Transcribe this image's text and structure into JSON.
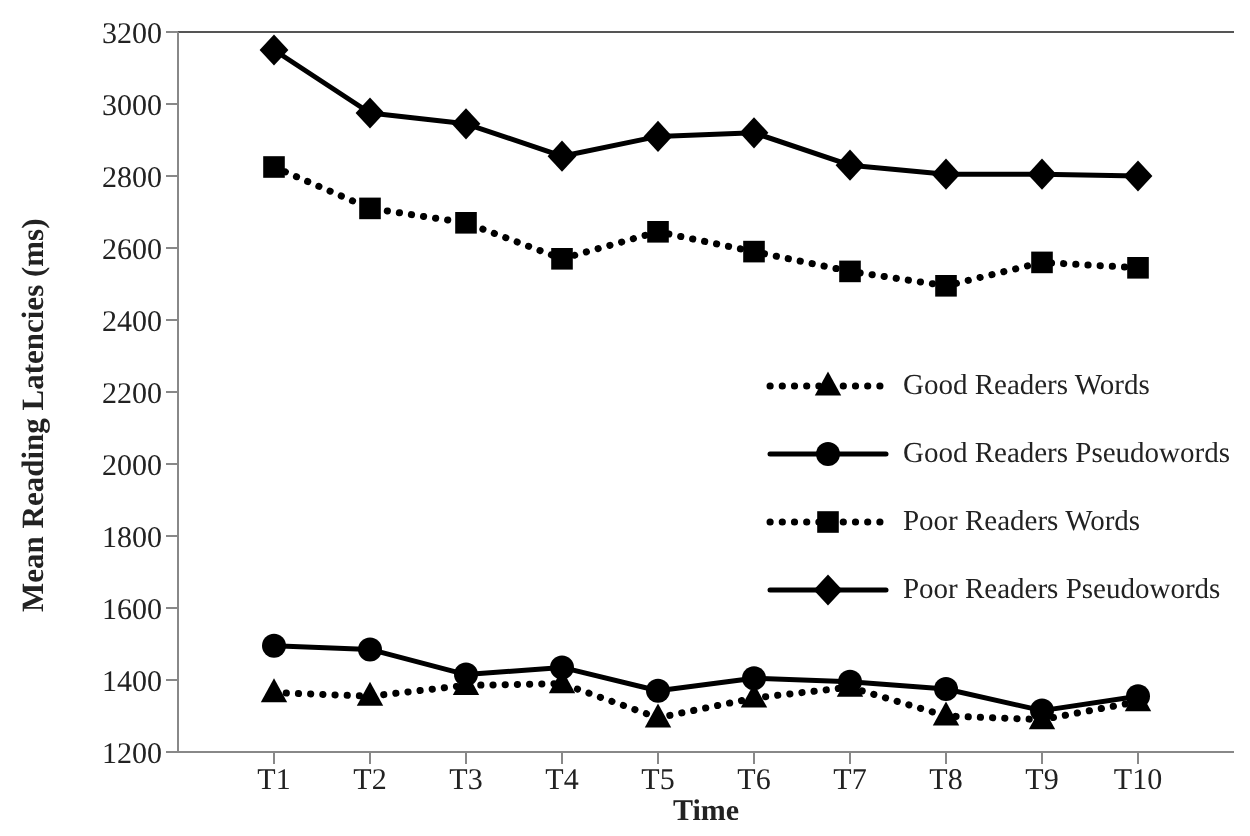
{
  "chart_data": {
    "type": "line",
    "xlabel": "Time",
    "ylabel": "Mean Reading Latencies (ms)",
    "categories": [
      "T1",
      "T2",
      "T3",
      "T4",
      "T5",
      "T6",
      "T7",
      "T8",
      "T9",
      "T10"
    ],
    "series": [
      {
        "name": "Good Readers Words",
        "color": "#000000",
        "marker": "triangle",
        "line_style": "dotted",
        "values": [
          1365,
          1355,
          1385,
          1390,
          1295,
          1350,
          1380,
          1300,
          1290,
          1340
        ]
      },
      {
        "name": "Good Readers Pseudowords",
        "color": "#000000",
        "marker": "circle",
        "line_style": "solid",
        "values": [
          1495,
          1485,
          1415,
          1435,
          1370,
          1405,
          1395,
          1375,
          1315,
          1355
        ]
      },
      {
        "name": "Poor Readers Words",
        "color": "#000000",
        "marker": "square",
        "line_style": "dotted",
        "values": [
          2825,
          2710,
          2670,
          2570,
          2645,
          2590,
          2535,
          2495,
          2560,
          2545
        ]
      },
      {
        "name": "Poor Readers Pseudowords",
        "color": "#000000",
        "marker": "diamond",
        "line_style": "solid",
        "values": [
          3150,
          2975,
          2945,
          2855,
          2910,
          2920,
          2830,
          2805,
          2805,
          2800
        ]
      }
    ],
    "ylim": [
      1200,
      3200
    ],
    "yticks": [
      1200,
      1400,
      1600,
      1800,
      2000,
      2200,
      2400,
      2600,
      2800,
      3000,
      3200
    ],
    "grid": false,
    "legend": "right"
  }
}
